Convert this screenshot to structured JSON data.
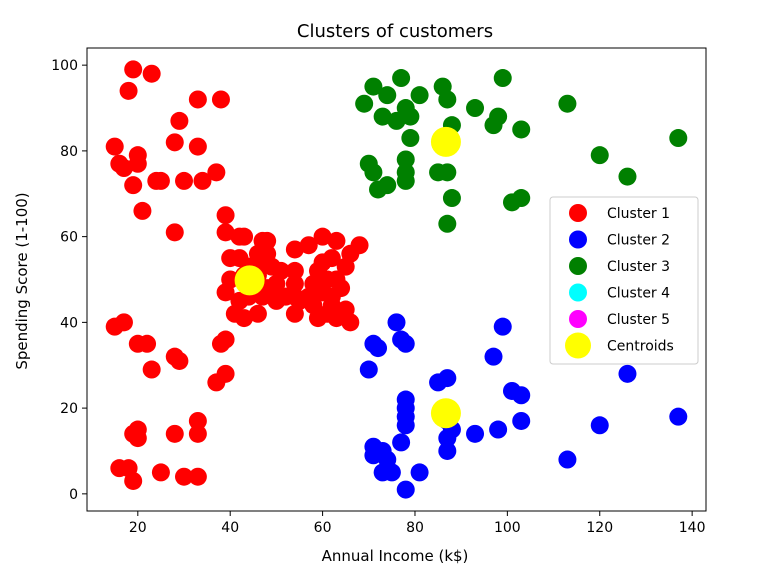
{
  "chart_data": {
    "type": "scatter",
    "title": "Clusters of customers",
    "xlabel": "Annual Income (k$)",
    "ylabel": "Spending Score (1-100)",
    "xlim": [
      9,
      143
    ],
    "ylim": [
      -4,
      104
    ],
    "xticks": [
      20,
      40,
      60,
      80,
      100,
      120,
      140
    ],
    "yticks": [
      0,
      20,
      40,
      60,
      80,
      100
    ],
    "grid": false,
    "legend_position": "center-right",
    "series": [
      {
        "name": "Cluster 1",
        "color": "#ff0000",
        "marker_size": "medium",
        "points": [
          [
            19,
            99
          ],
          [
            23,
            98
          ],
          [
            18,
            94
          ],
          [
            33,
            92
          ],
          [
            38,
            92
          ],
          [
            29,
            87
          ],
          [
            15,
            81
          ],
          [
            28,
            82
          ],
          [
            33,
            81
          ],
          [
            20,
            79
          ],
          [
            16,
            77
          ],
          [
            20,
            77
          ],
          [
            17,
            76
          ],
          [
            37,
            75
          ],
          [
            24,
            73
          ],
          [
            25,
            73
          ],
          [
            30,
            73
          ],
          [
            34,
            73
          ],
          [
            19,
            72
          ],
          [
            21,
            66
          ],
          [
            39,
            65
          ],
          [
            28,
            61
          ],
          [
            39,
            61
          ],
          [
            42,
            60
          ],
          [
            43,
            60
          ],
          [
            48,
            59
          ],
          [
            47,
            59
          ],
          [
            54,
            57
          ],
          [
            46,
            56
          ],
          [
            48,
            56
          ],
          [
            57,
            58
          ],
          [
            60,
            60
          ],
          [
            63,
            59
          ],
          [
            66,
            56
          ],
          [
            68,
            58
          ],
          [
            40,
            55
          ],
          [
            42,
            55
          ],
          [
            44,
            53
          ],
          [
            47,
            54
          ],
          [
            49,
            53
          ],
          [
            51,
            52
          ],
          [
            54,
            52
          ],
          [
            60,
            54
          ],
          [
            62,
            55
          ],
          [
            65,
            53
          ],
          [
            59,
            52
          ],
          [
            61,
            50
          ],
          [
            63,
            50
          ],
          [
            40,
            50
          ],
          [
            43,
            51
          ],
          [
            46,
            51
          ],
          [
            48,
            48
          ],
          [
            50,
            49
          ],
          [
            54,
            49
          ],
          [
            58,
            49
          ],
          [
            60,
            47
          ],
          [
            62,
            46
          ],
          [
            64,
            48
          ],
          [
            57,
            46
          ],
          [
            54,
            46
          ],
          [
            39,
            47
          ],
          [
            42,
            45
          ],
          [
            44,
            46
          ],
          [
            47,
            46
          ],
          [
            50,
            45
          ],
          [
            52,
            46
          ],
          [
            55,
            45
          ],
          [
            58,
            44
          ],
          [
            62,
            44
          ],
          [
            65,
            43
          ],
          [
            41,
            42
          ],
          [
            43,
            41
          ],
          [
            46,
            42
          ],
          [
            54,
            42
          ],
          [
            59,
            41
          ],
          [
            61,
            42
          ],
          [
            63,
            41
          ],
          [
            66,
            40
          ],
          [
            15,
            39
          ],
          [
            17,
            40
          ],
          [
            22,
            35
          ],
          [
            20,
            35
          ],
          [
            38,
            35
          ],
          [
            39,
            36
          ],
          [
            28,
            32
          ],
          [
            29,
            31
          ],
          [
            23,
            29
          ],
          [
            39,
            28
          ],
          [
            37,
            26
          ],
          [
            33,
            17
          ],
          [
            19,
            14
          ],
          [
            20,
            15
          ],
          [
            20,
            13
          ],
          [
            28,
            14
          ],
          [
            33,
            14
          ],
          [
            16,
            6
          ],
          [
            18,
            6
          ],
          [
            25,
            5
          ],
          [
            19,
            3
          ],
          [
            30,
            4
          ],
          [
            33,
            4
          ]
        ]
      },
      {
        "name": "Cluster 2",
        "color": "#0000ff",
        "marker_size": "medium",
        "points": [
          [
            76,
            40
          ],
          [
            99,
            39
          ],
          [
            77,
            36
          ],
          [
            71,
            35
          ],
          [
            78,
            35
          ],
          [
            72,
            34
          ],
          [
            97,
            32
          ],
          [
            70,
            29
          ],
          [
            126,
            28
          ],
          [
            85,
            26
          ],
          [
            87,
            27
          ],
          [
            101,
            24
          ],
          [
            103,
            23
          ],
          [
            78,
            22
          ],
          [
            78,
            20
          ],
          [
            78,
            18
          ],
          [
            87,
            17
          ],
          [
            103,
            17
          ],
          [
            78,
            16
          ],
          [
            88,
            15
          ],
          [
            93,
            14
          ],
          [
            98,
            15
          ],
          [
            87,
            13
          ],
          [
            77,
            12
          ],
          [
            120,
            16
          ],
          [
            71,
            11
          ],
          [
            71,
            9
          ],
          [
            73,
            10
          ],
          [
            74,
            8
          ],
          [
            113,
            8
          ],
          [
            73,
            5
          ],
          [
            75,
            5
          ],
          [
            81,
            5
          ],
          [
            78,
            1
          ],
          [
            87,
            10
          ],
          [
            137,
            18
          ]
        ]
      },
      {
        "name": "Cluster 3",
        "color": "#008000",
        "marker_size": "medium",
        "points": [
          [
            71,
            95
          ],
          [
            77,
            97
          ],
          [
            86,
            95
          ],
          [
            99,
            97
          ],
          [
            69,
            91
          ],
          [
            74,
            93
          ],
          [
            81,
            93
          ],
          [
            87,
            92
          ],
          [
            93,
            90
          ],
          [
            113,
            91
          ],
          [
            73,
            88
          ],
          [
            76,
            87
          ],
          [
            79,
            88
          ],
          [
            78,
            90
          ],
          [
            98,
            88
          ],
          [
            97,
            86
          ],
          [
            88,
            86
          ],
          [
            103,
            85
          ],
          [
            137,
            83
          ],
          [
            79,
            83
          ],
          [
            120,
            79
          ],
          [
            78,
            78
          ],
          [
            70,
            77
          ],
          [
            71,
            75
          ],
          [
            78,
            75
          ],
          [
            85,
            75
          ],
          [
            87,
            75
          ],
          [
            126,
            74
          ],
          [
            74,
            72
          ],
          [
            78,
            73
          ],
          [
            72,
            71
          ],
          [
            88,
            69
          ],
          [
            101,
            68
          ],
          [
            103,
            69
          ],
          [
            87,
            63
          ]
        ]
      },
      {
        "name": "Cluster 4",
        "color": "#00ffff",
        "marker_size": "medium",
        "points": []
      },
      {
        "name": "Cluster 5",
        "color": "#ff00ff",
        "marker_size": "medium",
        "points": []
      },
      {
        "name": "Centroids",
        "color": "#ffff00",
        "marker_size": "large",
        "points": [
          [
            44.2,
            49.8
          ],
          [
            86.7,
            82.1
          ],
          [
            86.7,
            18.8
          ]
        ]
      }
    ]
  }
}
